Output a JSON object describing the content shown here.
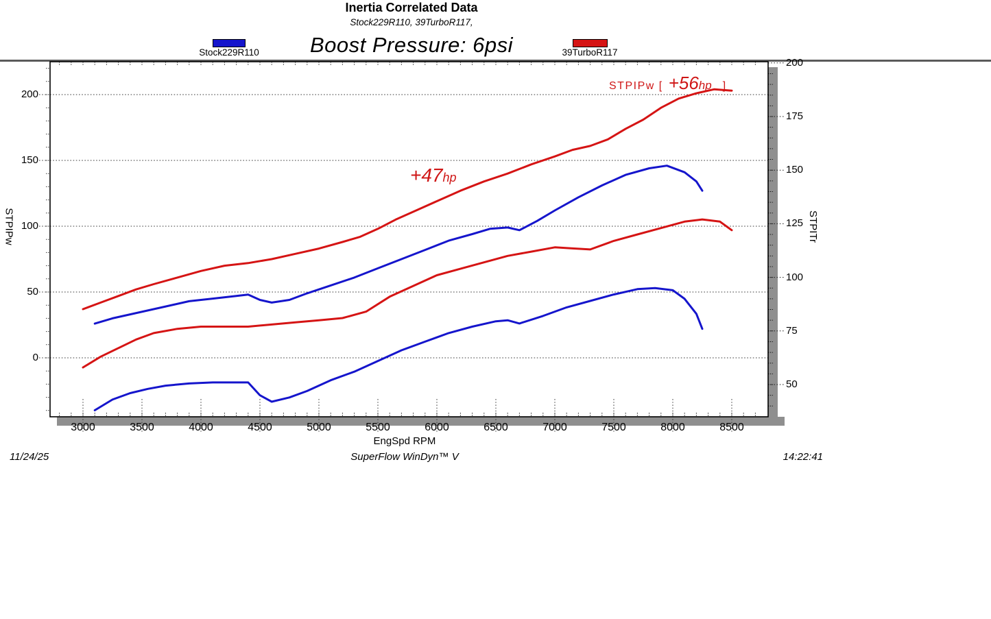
{
  "header": {
    "title": "Inertia Correlated Data",
    "subtitle": "Stock229R110, 39TurboR117,",
    "note": "Boost Pressure: 6psi"
  },
  "legend": [
    {
      "label": "Stock229R110",
      "color": "#1515cc"
    },
    {
      "label": "39TurboR117",
      "color": "#d51414"
    }
  ],
  "annotations": {
    "mid_gain": {
      "value": "+47",
      "unit": "hp"
    },
    "peak_gain": {
      "prefix": "STPIPw [",
      "value": "+56",
      "unit": "hp",
      "suffix": "]"
    }
  },
  "footer": {
    "date": "11/24/25",
    "app": "SuperFlow WinDyn™ V",
    "time": "14:22:41"
  },
  "chart_data": {
    "type": "line",
    "title": "Inertia Correlated Data",
    "subtitle": "Stock229R110, 39TurboR117,",
    "note": "Boost Pressure: 6psi",
    "xlabel": "EngSpd RPM",
    "ylabel_left": "STPIPw",
    "ylabel_right": "STPITr",
    "x_ticks": [
      3000,
      3500,
      4000,
      4500,
      5000,
      5500,
      6000,
      6500,
      7000,
      7500,
      8000,
      8500
    ],
    "x_minor_step": 100,
    "left_axis": {
      "title": "STPIPw",
      "ticks": [
        0,
        50,
        100,
        150,
        200
      ],
      "minor_step": 10,
      "range_shown": [
        -45,
        226
      ]
    },
    "right_axis": {
      "title": "STPITr",
      "ticks": [
        50,
        75,
        100,
        125,
        150,
        175,
        200
      ],
      "minor_step": 5,
      "range_shown": [
        40,
        200
      ]
    },
    "grid": "horizontal-dotted-at-left-major-ticks",
    "legend_position": "top",
    "series": [
      {
        "name": "39TurboR117 STPIPw",
        "run": "39TurboR117",
        "channel": "STPIPw",
        "axis": "left",
        "color": "#d51414",
        "points": [
          [
            3000,
            37
          ],
          [
            3150,
            42
          ],
          [
            3300,
            47
          ],
          [
            3450,
            52
          ],
          [
            3600,
            56
          ],
          [
            3800,
            61
          ],
          [
            4000,
            66
          ],
          [
            4200,
            70
          ],
          [
            4400,
            72
          ],
          [
            4600,
            75
          ],
          [
            4800,
            79
          ],
          [
            5000,
            83
          ],
          [
            5200,
            88
          ],
          [
            5350,
            92
          ],
          [
            5500,
            98
          ],
          [
            5650,
            105
          ],
          [
            5800,
            111
          ],
          [
            6000,
            119
          ],
          [
            6200,
            127
          ],
          [
            6400,
            134
          ],
          [
            6600,
            140
          ],
          [
            6800,
            147
          ],
          [
            7000,
            153
          ],
          [
            7150,
            158
          ],
          [
            7300,
            161
          ],
          [
            7450,
            166
          ],
          [
            7600,
            174
          ],
          [
            7750,
            181
          ],
          [
            7900,
            190
          ],
          [
            8050,
            197
          ],
          [
            8200,
            201
          ],
          [
            8350,
            204
          ],
          [
            8500,
            203
          ]
        ]
      },
      {
        "name": "Stock229R110 STPIPw",
        "run": "Stock229R110",
        "channel": "STPIPw",
        "axis": "left",
        "color": "#1515cc",
        "points": [
          [
            3100,
            26
          ],
          [
            3250,
            30
          ],
          [
            3400,
            33
          ],
          [
            3550,
            36
          ],
          [
            3700,
            39
          ],
          [
            3900,
            43
          ],
          [
            4100,
            45
          ],
          [
            4300,
            47
          ],
          [
            4400,
            48
          ],
          [
            4500,
            44
          ],
          [
            4600,
            42
          ],
          [
            4750,
            44
          ],
          [
            4900,
            49
          ],
          [
            5100,
            55
          ],
          [
            5300,
            61
          ],
          [
            5500,
            68
          ],
          [
            5700,
            75
          ],
          [
            5900,
            82
          ],
          [
            6100,
            89
          ],
          [
            6300,
            94
          ],
          [
            6450,
            98
          ],
          [
            6600,
            99
          ],
          [
            6700,
            97
          ],
          [
            6850,
            104
          ],
          [
            7000,
            112
          ],
          [
            7200,
            122
          ],
          [
            7400,
            131
          ],
          [
            7600,
            139
          ],
          [
            7800,
            144
          ],
          [
            7950,
            146
          ],
          [
            8100,
            141
          ],
          [
            8200,
            134
          ],
          [
            8250,
            127
          ]
        ]
      },
      {
        "name": "39TurboR117 STPITr",
        "run": "39TurboR117",
        "channel": "STPITr",
        "axis": "right",
        "color": "#d51414",
        "points": [
          [
            3000,
            58
          ],
          [
            3150,
            63
          ],
          [
            3300,
            67
          ],
          [
            3450,
            71
          ],
          [
            3600,
            74
          ],
          [
            3800,
            76
          ],
          [
            4000,
            77
          ],
          [
            4200,
            77
          ],
          [
            4400,
            77
          ],
          [
            4600,
            78
          ],
          [
            4800,
            79
          ],
          [
            5000,
            80
          ],
          [
            5200,
            81
          ],
          [
            5400,
            84
          ],
          [
            5600,
            91
          ],
          [
            5800,
            96
          ],
          [
            6000,
            101
          ],
          [
            6200,
            104
          ],
          [
            6400,
            107
          ],
          [
            6600,
            110
          ],
          [
            6800,
            112
          ],
          [
            7000,
            114
          ],
          [
            7150,
            113.5
          ],
          [
            7300,
            113
          ],
          [
            7500,
            117
          ],
          [
            7700,
            120
          ],
          [
            7900,
            123
          ],
          [
            8100,
            126
          ],
          [
            8250,
            127
          ],
          [
            8400,
            126
          ],
          [
            8500,
            122
          ]
        ]
      },
      {
        "name": "Stock229R110 STPITr",
        "run": "Stock229R110",
        "channel": "STPITr",
        "axis": "right",
        "color": "#1515cc",
        "points": [
          [
            3100,
            38
          ],
          [
            3250,
            43
          ],
          [
            3400,
            46
          ],
          [
            3550,
            48
          ],
          [
            3700,
            49.5
          ],
          [
            3900,
            50.5
          ],
          [
            4100,
            51
          ],
          [
            4300,
            51
          ],
          [
            4400,
            51
          ],
          [
            4500,
            45
          ],
          [
            4600,
            42
          ],
          [
            4750,
            44
          ],
          [
            4900,
            47
          ],
          [
            5100,
            52
          ],
          [
            5300,
            56
          ],
          [
            5500,
            61
          ],
          [
            5700,
            66
          ],
          [
            5900,
            70
          ],
          [
            6100,
            74
          ],
          [
            6300,
            77
          ],
          [
            6500,
            79.5
          ],
          [
            6600,
            80
          ],
          [
            6700,
            78.5
          ],
          [
            6900,
            82
          ],
          [
            7100,
            86
          ],
          [
            7300,
            89
          ],
          [
            7500,
            92
          ],
          [
            7700,
            94.5
          ],
          [
            7850,
            95
          ],
          [
            8000,
            94
          ],
          [
            8100,
            90
          ],
          [
            8200,
            83
          ],
          [
            8250,
            76
          ]
        ]
      }
    ]
  }
}
